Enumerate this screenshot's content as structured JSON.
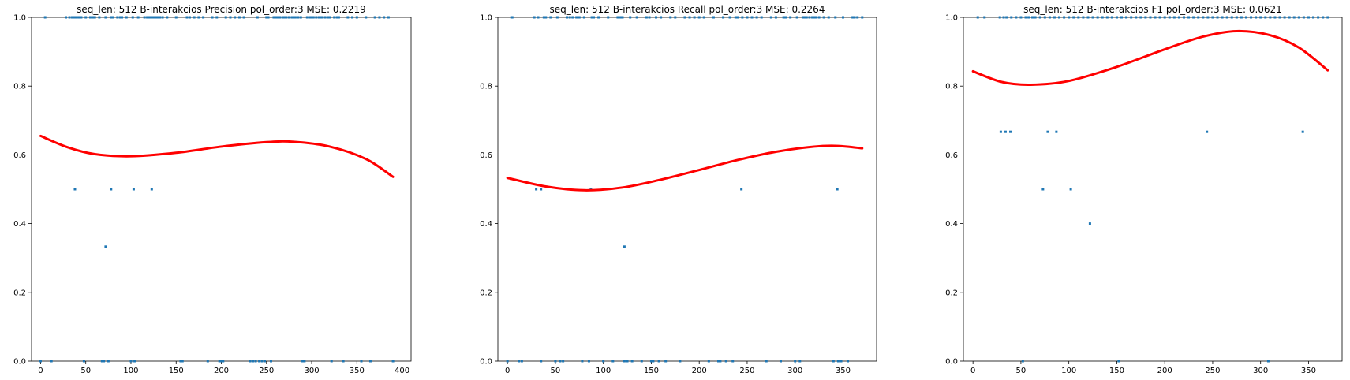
{
  "chart_data": [
    {
      "type": "scatter",
      "title": "seq_len: 512    B-interakcios   Precision   pol_order:3   MSE: 0.2219",
      "xlabel": "",
      "ylabel": "",
      "xlim": [
        -10,
        410
      ],
      "ylim": [
        0,
        1
      ],
      "xticks": [
        0,
        50,
        100,
        150,
        200,
        250,
        300,
        350,
        400
      ],
      "yticks": [
        0.0,
        0.2,
        0.4,
        0.6,
        0.8,
        1.0
      ],
      "xtick_labels": [
        "0",
        "50",
        "100",
        "150",
        "200",
        "250",
        "300",
        "350",
        "400"
      ],
      "ytick_labels": [
        "0.0",
        "0.2",
        "0.4",
        "0.6",
        "0.8",
        "1.0"
      ],
      "grid": false,
      "series": [
        {
          "kind": "scatter",
          "color": "#1f77b4",
          "x": [
            0,
            5,
            12,
            28,
            32,
            35,
            37,
            39,
            42,
            45,
            48,
            50,
            55,
            58,
            60,
            65,
            68,
            70,
            72,
            75,
            78,
            80,
            85,
            88,
            90,
            95,
            100,
            102,
            104,
            108,
            115,
            118,
            120,
            122,
            124,
            126,
            128,
            130,
            132,
            135,
            140,
            150,
            155,
            157,
            162,
            165,
            170,
            175,
            180,
            185,
            190,
            195,
            198,
            200,
            202,
            205,
            210,
            215,
            220,
            225,
            232,
            235,
            238,
            240,
            242,
            245,
            248,
            250,
            252,
            255,
            258,
            260,
            262,
            265,
            268,
            270,
            272,
            275,
            278,
            280,
            282,
            285,
            288,
            290,
            292,
            295,
            298,
            300,
            302,
            305,
            308,
            310,
            312,
            315,
            318,
            320,
            322,
            325,
            328,
            330,
            335,
            340,
            345,
            350,
            355,
            360,
            365,
            370,
            375,
            380,
            385,
            390,
            38,
            78,
            103,
            123,
            72
          ],
          "y": [
            0,
            1,
            0,
            1,
            1,
            1,
            1,
            1,
            1,
            1,
            0,
            1,
            1,
            1,
            1,
            1,
            0,
            0,
            1,
            0,
            1,
            1,
            1,
            1,
            1,
            1,
            0,
            1,
            0,
            1,
            1,
            1,
            1,
            1,
            1,
            1,
            1,
            1,
            1,
            1,
            1,
            1,
            0,
            0,
            1,
            1,
            1,
            1,
            1,
            0,
            1,
            1,
            0,
            0,
            0,
            1,
            1,
            1,
            1,
            1,
            0,
            0,
            0,
            1,
            0,
            0,
            0,
            1,
            1,
            0,
            1,
            1,
            1,
            1,
            1,
            1,
            1,
            1,
            1,
            1,
            1,
            1,
            1,
            0,
            0,
            1,
            1,
            1,
            1,
            1,
            1,
            1,
            1,
            1,
            1,
            1,
            0,
            1,
            1,
            1,
            0,
            1,
            1,
            1,
            0,
            1,
            0,
            1,
            1,
            1,
            1,
            0,
            0.5,
            0.5,
            0.5,
            0.5,
            0.333
          ]
        },
        {
          "kind": "line",
          "color": "#ff0000",
          "x": [
            0,
            30,
            60,
            100,
            150,
            200,
            250,
            280,
            320,
            360,
            390
          ],
          "y": [
            0.655,
            0.622,
            0.602,
            0.596,
            0.606,
            0.624,
            0.637,
            0.638,
            0.624,
            0.588,
            0.536
          ]
        }
      ]
    },
    {
      "type": "scatter",
      "title": "seq_len: 512    B-interakcios   Recall   pol_order:3   MSE: 0.2264",
      "xlabel": "",
      "ylabel": "",
      "xlim": [
        -10,
        385
      ],
      "ylim": [
        0,
        1
      ],
      "xticks": [
        0,
        50,
        100,
        150,
        200,
        250,
        300,
        350
      ],
      "yticks": [
        0.0,
        0.2,
        0.4,
        0.6,
        0.8,
        1.0
      ],
      "xtick_labels": [
        "0",
        "50",
        "100",
        "150",
        "200",
        "250",
        "300",
        "350"
      ],
      "ytick_labels": [
        "0.0",
        "0.2",
        "0.4",
        "0.6",
        "0.8",
        "1.0"
      ],
      "grid": false,
      "series": [
        {
          "kind": "scatter",
          "color": "#1f77b4",
          "x": [
            0,
            5,
            12,
            15,
            28,
            32,
            35,
            38,
            40,
            45,
            50,
            52,
            55,
            58,
            62,
            65,
            68,
            72,
            75,
            78,
            80,
            85,
            88,
            90,
            95,
            100,
            105,
            110,
            115,
            118,
            120,
            122,
            125,
            128,
            130,
            135,
            140,
            145,
            148,
            150,
            152,
            155,
            158,
            160,
            165,
            170,
            175,
            180,
            185,
            190,
            195,
            200,
            205,
            210,
            215,
            220,
            222,
            225,
            228,
            232,
            235,
            238,
            240,
            245,
            250,
            255,
            260,
            265,
            270,
            275,
            280,
            285,
            288,
            290,
            295,
            300,
            302,
            305,
            308,
            310,
            312,
            315,
            318,
            320,
            322,
            325,
            330,
            335,
            340,
            342,
            345,
            348,
            350,
            355,
            360,
            362,
            365,
            370,
            30,
            35,
            87,
            244,
            344,
            122
          ],
          "y": [
            0,
            1,
            0,
            0,
            1,
            1,
            0,
            1,
            1,
            1,
            0,
            1,
            0,
            0,
            1,
            1,
            1,
            1,
            1,
            0,
            1,
            0,
            1,
            1,
            1,
            0,
            1,
            0,
            1,
            1,
            1,
            0,
            0,
            1,
            0,
            1,
            0,
            1,
            1,
            0,
            0,
            1,
            0,
            1,
            0,
            1,
            1,
            0,
            1,
            1,
            1,
            1,
            1,
            0,
            1,
            0,
            0,
            1,
            0,
            1,
            0,
            1,
            1,
            1,
            1,
            1,
            1,
            1,
            0,
            1,
            1,
            0,
            1,
            1,
            1,
            0,
            1,
            0,
            1,
            1,
            1,
            1,
            1,
            1,
            1,
            1,
            1,
            1,
            0,
            1,
            0,
            0,
            1,
            0,
            1,
            1,
            1,
            1,
            0.5,
            0.5,
            0.5,
            0.5,
            0.5,
            0.333
          ]
        },
        {
          "kind": "line",
          "color": "#ff0000",
          "x": [
            0,
            40,
            80,
            120,
            160,
            200,
            240,
            280,
            320,
            345,
            370
          ],
          "y": [
            0.533,
            0.508,
            0.497,
            0.505,
            0.528,
            0.556,
            0.585,
            0.609,
            0.624,
            0.626,
            0.619
          ]
        }
      ]
    },
    {
      "type": "scatter",
      "title": "seq_len: 512    B-interakcios   F1   pol_order:3   MSE: 0.0621",
      "xlabel": "",
      "ylabel": "",
      "xlim": [
        -10,
        385
      ],
      "ylim": [
        0,
        1
      ],
      "xticks": [
        0,
        50,
        100,
        150,
        200,
        250,
        300,
        350
      ],
      "yticks": [
        0.0,
        0.2,
        0.4,
        0.6,
        0.8,
        1.0
      ],
      "xtick_labels": [
        "0",
        "50",
        "100",
        "150",
        "200",
        "250",
        "300",
        "350"
      ],
      "ytick_labels": [
        "0.0",
        "0.2",
        "0.4",
        "0.6",
        "0.8",
        "1.0"
      ],
      "grid": false,
      "series": [
        {
          "kind": "scatter",
          "color": "#1f77b4",
          "x": [
            5,
            12,
            28,
            32,
            35,
            40,
            45,
            50,
            52,
            55,
            58,
            62,
            65,
            70,
            75,
            80,
            85,
            90,
            95,
            100,
            105,
            110,
            115,
            120,
            125,
            130,
            135,
            140,
            145,
            150,
            152,
            155,
            160,
            165,
            170,
            175,
            180,
            185,
            190,
            195,
            200,
            205,
            210,
            215,
            220,
            225,
            230,
            235,
            240,
            245,
            250,
            255,
            260,
            265,
            270,
            275,
            280,
            285,
            290,
            295,
            300,
            305,
            308,
            310,
            315,
            320,
            325,
            330,
            335,
            340,
            345,
            350,
            355,
            360,
            365,
            370,
            29,
            34,
            39,
            78,
            87,
            244,
            344,
            73,
            102,
            122
          ],
          "y": [
            1,
            1,
            1,
            1,
            1,
            1,
            1,
            1,
            0,
            1,
            1,
            1,
            1,
            1,
            1,
            1,
            1,
            1,
            1,
            1,
            1,
            1,
            1,
            1,
            1,
            1,
            1,
            1,
            1,
            1,
            0,
            1,
            1,
            1,
            1,
            1,
            1,
            1,
            1,
            1,
            1,
            1,
            1,
            1,
            1,
            1,
            1,
            1,
            1,
            1,
            1,
            1,
            1,
            1,
            1,
            1,
            1,
            1,
            1,
            1,
            1,
            1,
            0,
            1,
            1,
            1,
            1,
            1,
            1,
            1,
            1,
            1,
            1,
            1,
            1,
            1,
            0.667,
            0.667,
            0.667,
            0.667,
            0.667,
            0.667,
            0.667,
            0.5,
            0.5,
            0.4
          ]
        },
        {
          "kind": "line",
          "color": "#ff0000",
          "x": [
            0,
            30,
            60,
            100,
            150,
            200,
            240,
            275,
            310,
            340,
            370
          ],
          "y": [
            0.843,
            0.812,
            0.804,
            0.815,
            0.856,
            0.907,
            0.944,
            0.96,
            0.948,
            0.912,
            0.846
          ]
        }
      ]
    }
  ]
}
